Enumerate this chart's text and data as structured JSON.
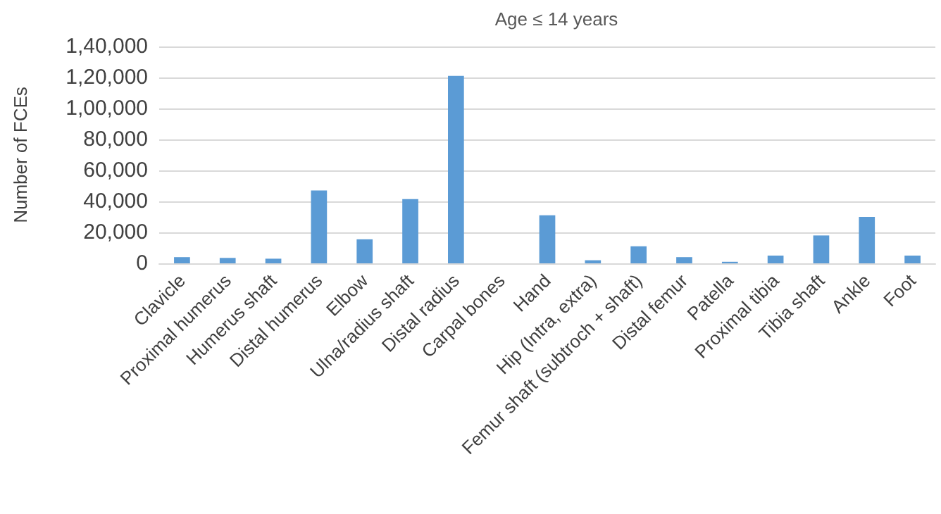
{
  "chart_data": {
    "type": "bar",
    "title": "Age ≤ 14 years",
    "ylabel": "Number of FCEs",
    "categories": [
      "Clavicle",
      "Proximal humerus",
      "Humerus shaft",
      "Distal humerus",
      "Elbow",
      "Ulna/radius shaft",
      "Distal radius",
      "Carpal bones",
      "Hand",
      "Hip (Intra, extra)",
      "Femur shaft (subtroch + shaft)",
      "Distal femur",
      "Patella",
      "Proximal tibia",
      "Tibia shaft",
      "Ankle",
      "Foot"
    ],
    "values": [
      4000,
      3500,
      3000,
      47000,
      15500,
      41500,
      121000,
      0,
      31000,
      2000,
      11000,
      4000,
      1000,
      5000,
      18000,
      30000,
      5000
    ],
    "color": "#5b9bd5",
    "ylim": [
      0,
      140000
    ],
    "yticks": [
      0,
      {
        "value": 20000,
        "label": "20,000"
      },
      {
        "value": 40000,
        "label": "40,000"
      },
      {
        "value": 60000,
        "label": "60,000"
      },
      {
        "value": 80000,
        "label": "80,000"
      },
      {
        "value": 100000,
        "label": "1,00,000"
      },
      {
        "value": 120000,
        "label": "1,20,000"
      },
      {
        "value": 140000,
        "label": "1,40,000"
      }
    ],
    "grid": "y"
  }
}
